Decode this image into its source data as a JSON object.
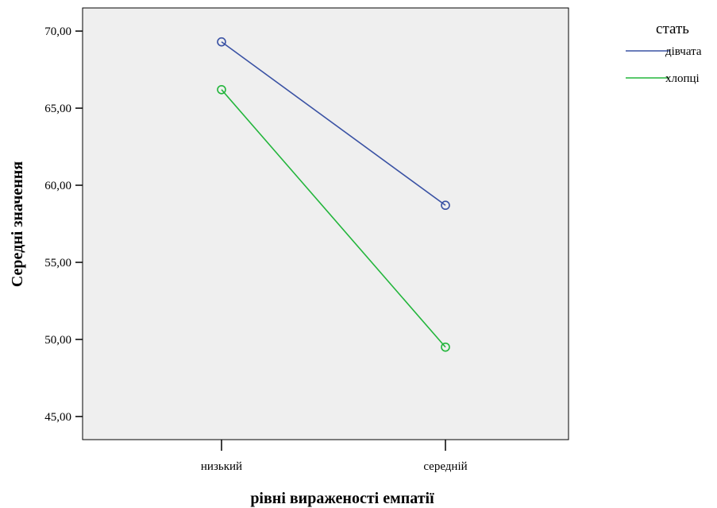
{
  "chart_data": {
    "type": "line",
    "xlabel": "рівні вираженості емпатії",
    "ylabel": "Середні значення",
    "categories": [
      "низький",
      "середній"
    ],
    "ylim": [
      43.5,
      71.5
    ],
    "yticks": [
      45,
      50,
      55,
      60,
      65,
      70
    ],
    "ytick_labels": [
      "45,00",
      "50,00",
      "55,00",
      "60,00",
      "65,00",
      "70,00"
    ],
    "grid": false,
    "legend": {
      "title": "стать",
      "placement": "top-right, outside plot"
    },
    "series": [
      {
        "name": "дівчата",
        "color": "#3a52a4",
        "values": [
          69.3,
          58.7
        ]
      },
      {
        "name": "хлопці",
        "color": "#22b53b",
        "values": [
          66.2,
          49.5
        ]
      }
    ],
    "plot_background": "#efefef"
  }
}
